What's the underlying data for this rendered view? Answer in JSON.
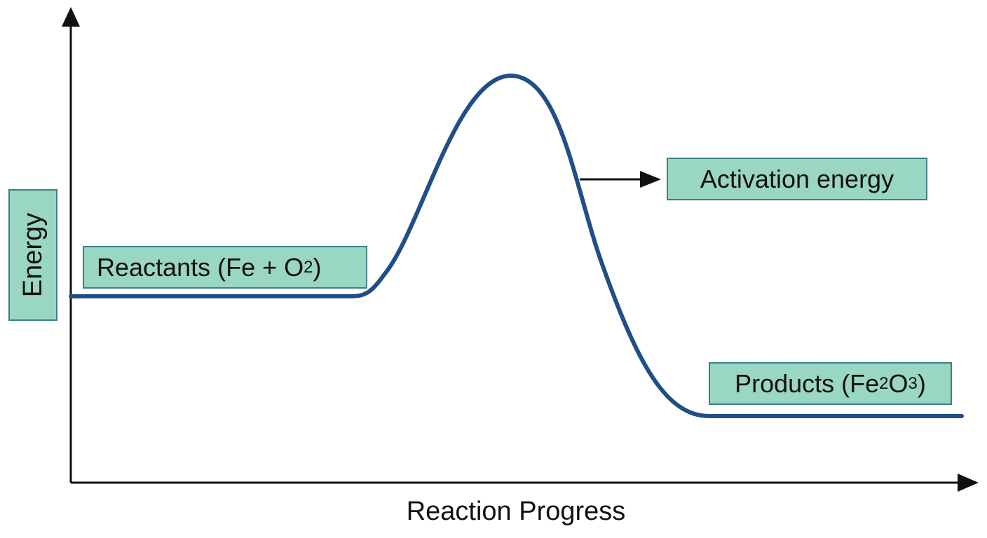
{
  "axes": {
    "y_label": "Energy",
    "x_label": "Reaction Progress"
  },
  "labels": {
    "reactants": {
      "text": "Reactants (Fe + O",
      "sub": "2",
      "suffix": ")"
    },
    "activation": "Activation energy",
    "products": {
      "text": "Products (Fe",
      "sub1": "2",
      "mid": "O",
      "sub2": "3",
      "suffix": ")"
    }
  },
  "colors": {
    "curve": "#1f4f86",
    "box_fill": "#99d6c3",
    "box_border": "#3f7f83",
    "axis": "#111111"
  }
}
